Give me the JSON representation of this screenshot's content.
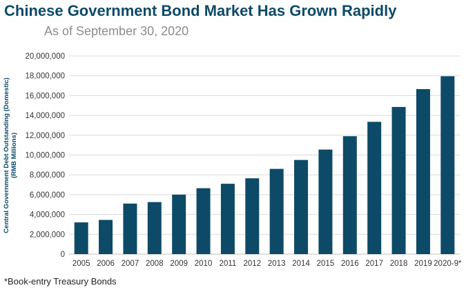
{
  "title": "Chinese Government Bond Market Has Grown Rapidly",
  "subtitle": "As of September 30, 2020",
  "footnote": "*Book-entry Treasury Bonds",
  "colors": {
    "bar": "#0d4a67",
    "title": "#0d4a67",
    "grid": "#d9d9d9"
  },
  "chart_data": {
    "type": "bar",
    "categories": [
      "2005",
      "2006",
      "2007",
      "2008",
      "2009",
      "2010",
      "2011",
      "2012",
      "2013",
      "2014",
      "2015",
      "2016",
      "2017",
      "2018",
      "2019",
      "2020-9*"
    ],
    "values": [
      3200000,
      3450000,
      5100000,
      5250000,
      6000000,
      6650000,
      7100000,
      7650000,
      8600000,
      9500000,
      10550000,
      11900000,
      13350000,
      14850000,
      16650000,
      17950000
    ],
    "ylabel_line1": "Central Government Debt Outstanding (Domestic)",
    "ylabel_line2": "(RMB Millions)",
    "ylim": [
      0,
      20000000
    ],
    "yticks": [
      0,
      2000000,
      4000000,
      6000000,
      8000000,
      10000000,
      12000000,
      14000000,
      16000000,
      18000000,
      20000000
    ],
    "ytick_labels": [
      "0",
      "2,000,000",
      "4,000,000",
      "6,000,000",
      "8,000,000",
      "10,000,000",
      "12,000,000",
      "14,000,000",
      "16,000,000",
      "18,000,000",
      "20,000,000"
    ],
    "grid": true,
    "legend": "none"
  }
}
